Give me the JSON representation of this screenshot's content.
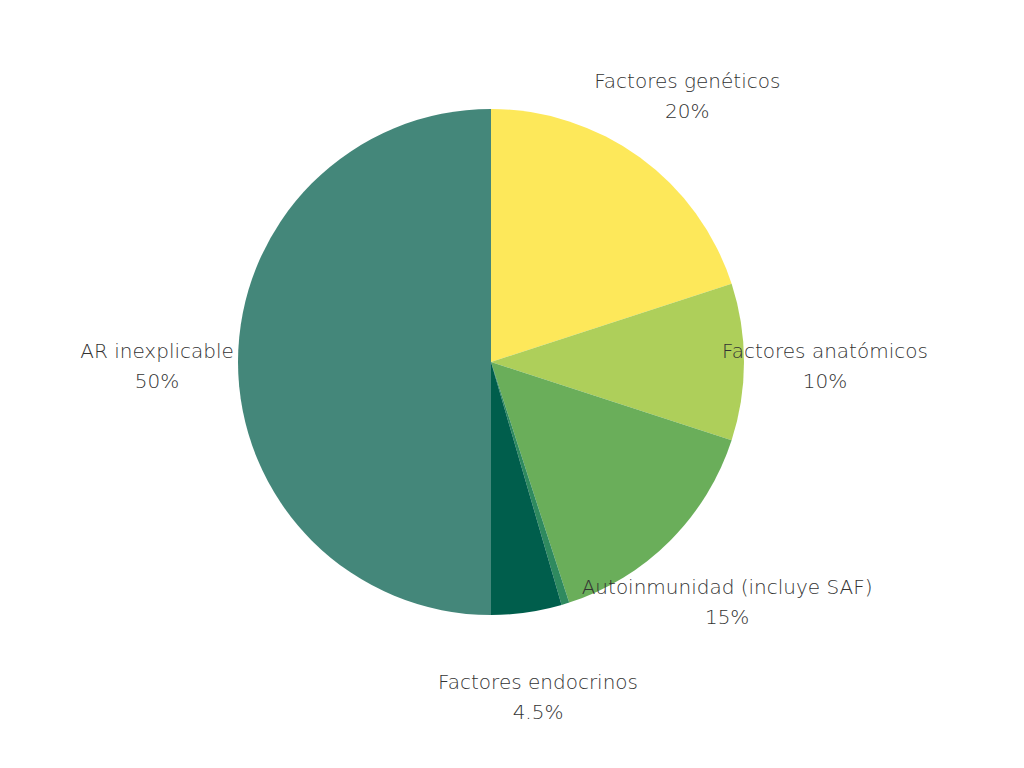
{
  "chart_data": {
    "type": "pie",
    "categories": [
      "Factores genéticos",
      "Factores anatómicos",
      "Autoinmunidad (incluye SAF)",
      null,
      "Factores endocrinos",
      "AR inexplicable"
    ],
    "values": [
      20,
      10,
      15,
      0.5,
      4.5,
      50
    ],
    "value_labels": [
      "20%",
      "10%",
      "15%",
      null,
      "4.5%",
      "50%"
    ],
    "colors": [
      "#fde85a",
      "#aecf5a",
      "#6aae5a",
      "#2f8a5f",
      "#005e4c",
      "#44877a"
    ],
    "data_labels": true
  }
}
